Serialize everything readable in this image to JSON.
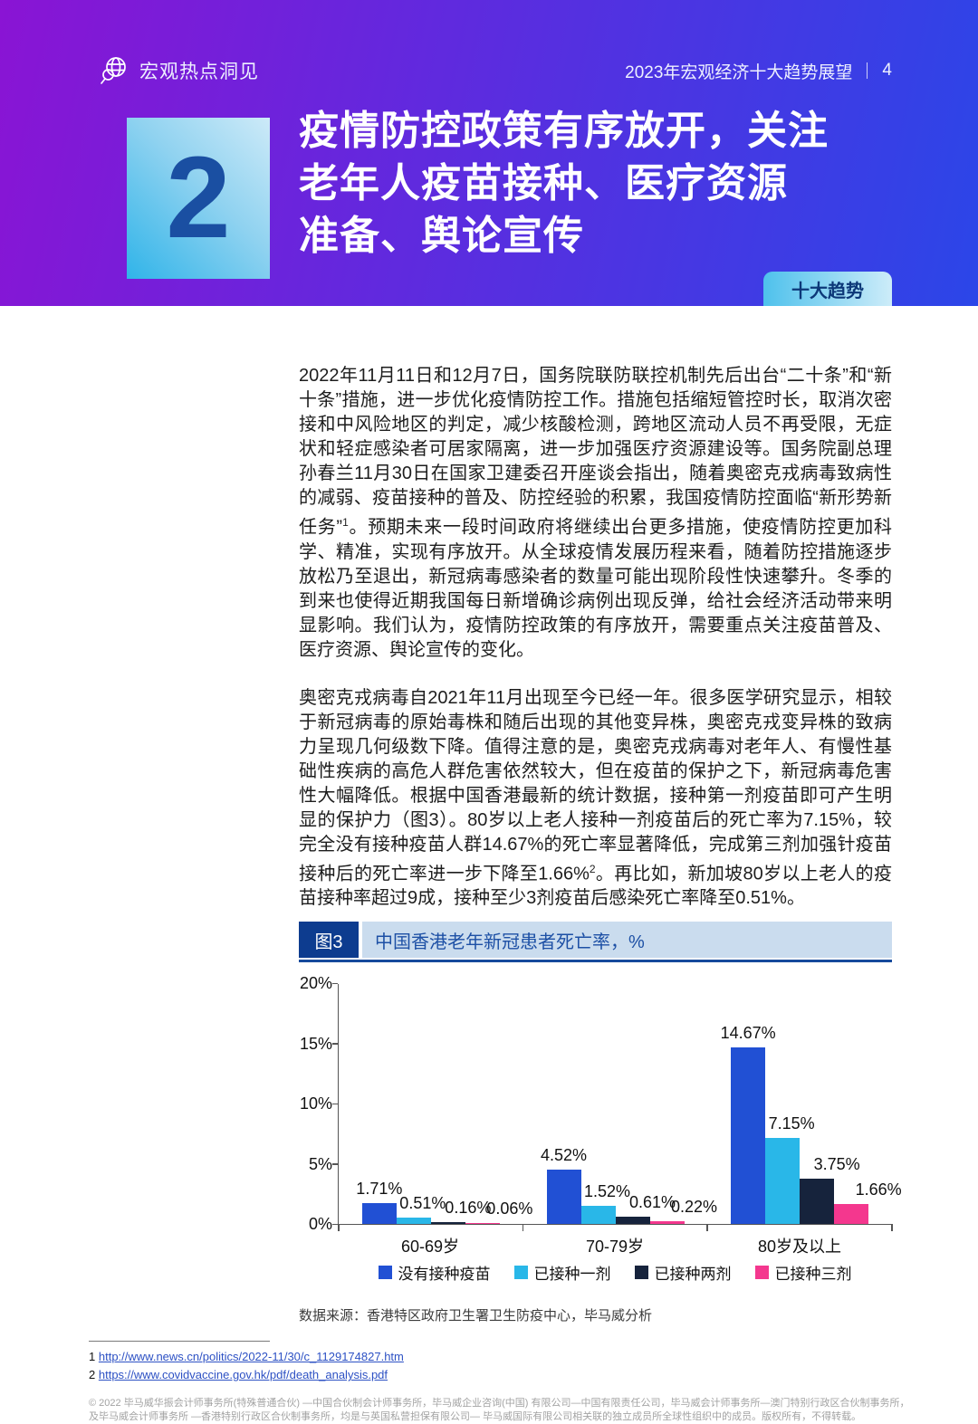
{
  "header": {
    "logo_text": "宏观热点洞见",
    "doc_title": "2023年宏观经济十大趋势展望",
    "page_number": "4"
  },
  "banner": {
    "number": "2",
    "title_lines": [
      "疫情防控政策有序放开，关注",
      "老年人疫苗接种、医疗资源",
      "准备、舆论宣传"
    ],
    "badge": "十大趋势"
  },
  "body": {
    "p1": {
      "a": "2022年11月11日和12月7日，国务院联防联控机制先后出台“二十条”和“新十条”措施，进一步优化疫情防控工作。措施包括缩短管控时长，取消次密接和中风险地区的判定，减少核酸检测，跨地区流动人员不再受限，无症状和轻症感染者可居家隔离，进一步加强医疗资源建设等。国务院副总理孙春兰11月30日在国家卫建委召开座谈会指出，随着奥密克戎病毒致病性的减弱、疫苗接种的普及、防控经验的积累，我国疫情防控面临“新形势新任务”",
      "sup": "1",
      "b": "。预期未来一段时间政府将继续出台更多措施，使疫情防控更加科学、精准，实现有序放开。从全球疫情发展历程来看，随着防控措施逐步放松乃至退出，新冠病毒感染者的数量可能出现阶段性快速攀升。冬季的到来也使得近期我国每日新增确诊病例出现反弹，给社会经济活动带来明显影响。我们认为，疫情防控政策的有序放开，需要重点关注疫苗普及、医疗资源、舆论宣传的变化。"
    },
    "p2": {
      "a": "奥密克戎病毒自2021年11月出现至今已经一年。很多医学研究显示，相较于新冠病毒的原始毒株和随后出现的其他变异株，奥密克戎变异株的致病力呈现几何级数下降。值得注意的是，奥密克戎病毒对老年人、有慢性基础性疾病的高危人群危害依然较大，但在疫苗的保护之下，新冠病毒危害性大幅降低。根据中国香港最新的统计数据，接种第一剂疫苗即可产生明显的保护力（图3）。80岁以上老人接种一剂疫苗后的死亡率为7.15%，较完全没有接种疫苗人群14.67%的死亡率显著降低，完成第三剂加强针疫苗接种后的死亡率进一步下降至1.66%",
      "sup": "2",
      "b": "。再比如，新加坡80岁以上老人的疫苗接种率超过9成，接种至少3剂疫苗后感染死亡率降至0.51%。"
    }
  },
  "figure": {
    "tag": "图3",
    "title": "中国香港老年新冠患者死亡率，%",
    "source": "数据来源：香港特区政府卫生署卫生防疫中心，毕马威分析"
  },
  "chart_data": {
    "type": "bar",
    "title": "中国香港老年新冠患者死亡率，%",
    "categories": [
      "60-69岁",
      "70-79岁",
      "80岁及以上"
    ],
    "series": [
      {
        "name": "没有接种疫苗",
        "color": "#2150d4",
        "values": [
          1.71,
          4.52,
          14.67
        ]
      },
      {
        "name": "已接种一剂",
        "color": "#29b7e8",
        "values": [
          0.51,
          1.52,
          7.15
        ]
      },
      {
        "name": "已接种两剂",
        "color": "#16233c",
        "values": [
          0.16,
          0.61,
          3.75
        ]
      },
      {
        "name": "已接种三剂",
        "color": "#f4378e",
        "values": [
          0.06,
          0.22,
          1.66
        ]
      }
    ],
    "ylim": [
      0,
      20
    ],
    "yticks": [
      "0%",
      "5%",
      "10%",
      "15%",
      "20%"
    ],
    "value_suffix": "%",
    "legend_position": "bottom",
    "grid": false
  },
  "footnotes": [
    {
      "num": "1",
      "text": "http://www.news.cn/politics/2022-11/30/c_1129174827.htm",
      "url": "http://www.news.cn/politics/2022-11/30/c_1129174827.htm"
    },
    {
      "num": "2",
      "text": "https://www.covidvaccine.gov.hk/pdf/death_analysis.pdf",
      "url": "https://www.covidvaccine.gov.hk/pdf/death_analysis.pdf"
    }
  ],
  "copyright": [
    "© 2022 毕马威华振会计师事务所(特殊普通合伙) —中国合伙制会计师事务所，毕马威企业咨询(中国) 有限公司—中国有限责任公司，毕马威会计师事务所—澳门特别行政区合伙制事务所，",
    "及毕马威会计师事务所 —香港特别行政区合伙制事务所，均是与英国私营担保有限公司— 毕马威国际有限公司相关联的独立成员所全球性组织中的成员。版权所有，不得转载。"
  ]
}
